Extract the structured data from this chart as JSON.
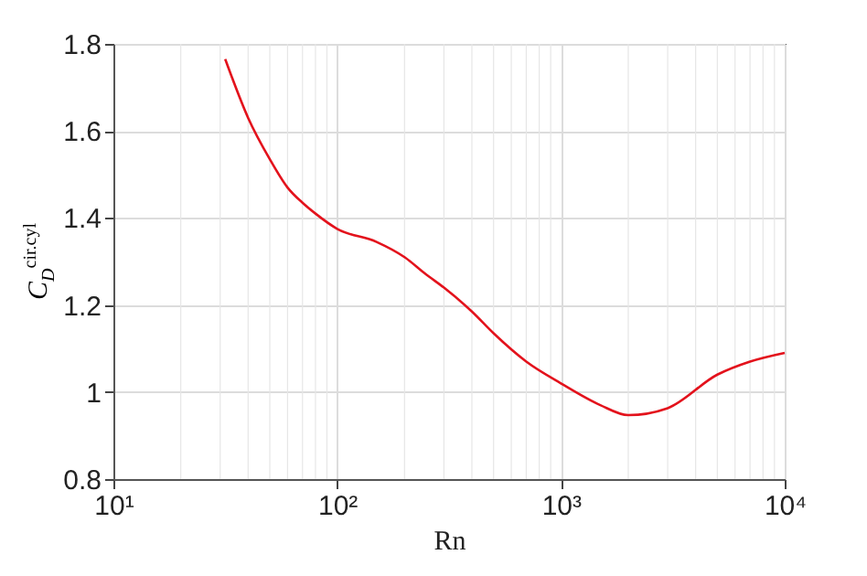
{
  "chart_data": {
    "type": "line",
    "xlabel": "Rn",
    "ylabel": "C$_{D}$$^{cir.cyl}$",
    "log": "x",
    "grid": true,
    "xlim": [
      10,
      10000
    ],
    "xticks": [
      {
        "value": 10,
        "label": "10¹"
      },
      {
        "value": 100,
        "label": "10²"
      },
      {
        "value": 1000,
        "label": "10³"
      },
      {
        "value": 10000,
        "label": "10⁴"
      }
    ],
    "ylim": [
      0.8,
      1.8
    ],
    "yticks": [
      0.8,
      1,
      1.2,
      1.4,
      1.6,
      1.8
    ],
    "series": [
      {
        "color": "#e3121c",
        "x": [
          31.6,
          40,
          50,
          60,
          70,
          80,
          100,
          150,
          200,
          250,
          300,
          400,
          500,
          700,
          1000,
          1500,
          2000,
          3000,
          5000,
          7000,
          10000
        ],
        "values": [
          1.765,
          1.63,
          1.535,
          1.47,
          1.435,
          1.41,
          1.375,
          1.345,
          1.31,
          1.27,
          1.24,
          1.185,
          1.135,
          1.07,
          1.02,
          0.97,
          0.947,
          0.963,
          1.04,
          1.07,
          1.09
        ]
      }
    ]
  }
}
